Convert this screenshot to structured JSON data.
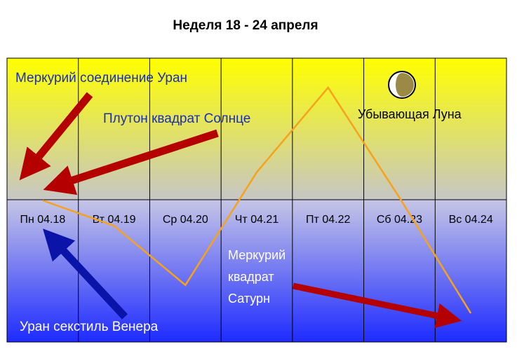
{
  "chart_data": {
    "type": "line",
    "title": "Неделя 18 - 24 апреля",
    "categories": [
      "Пн 04.18",
      "Вт 04.19",
      "Ср 04.20",
      "Чт 04.21",
      "Пт 04.22",
      "Сб 04.23",
      "Вс 04.24"
    ],
    "values": [
      50,
      41,
      20,
      60,
      90,
      51,
      10
    ],
    "color": "#f7a21b",
    "annotations": [
      "Меркурий соединение Уран",
      "Плутон квадрат Солнце",
      "Убывающая Луна",
      "Меркурий",
      "квадрат",
      "Сатурн",
      "Уран секстиль Венера"
    ]
  }
}
